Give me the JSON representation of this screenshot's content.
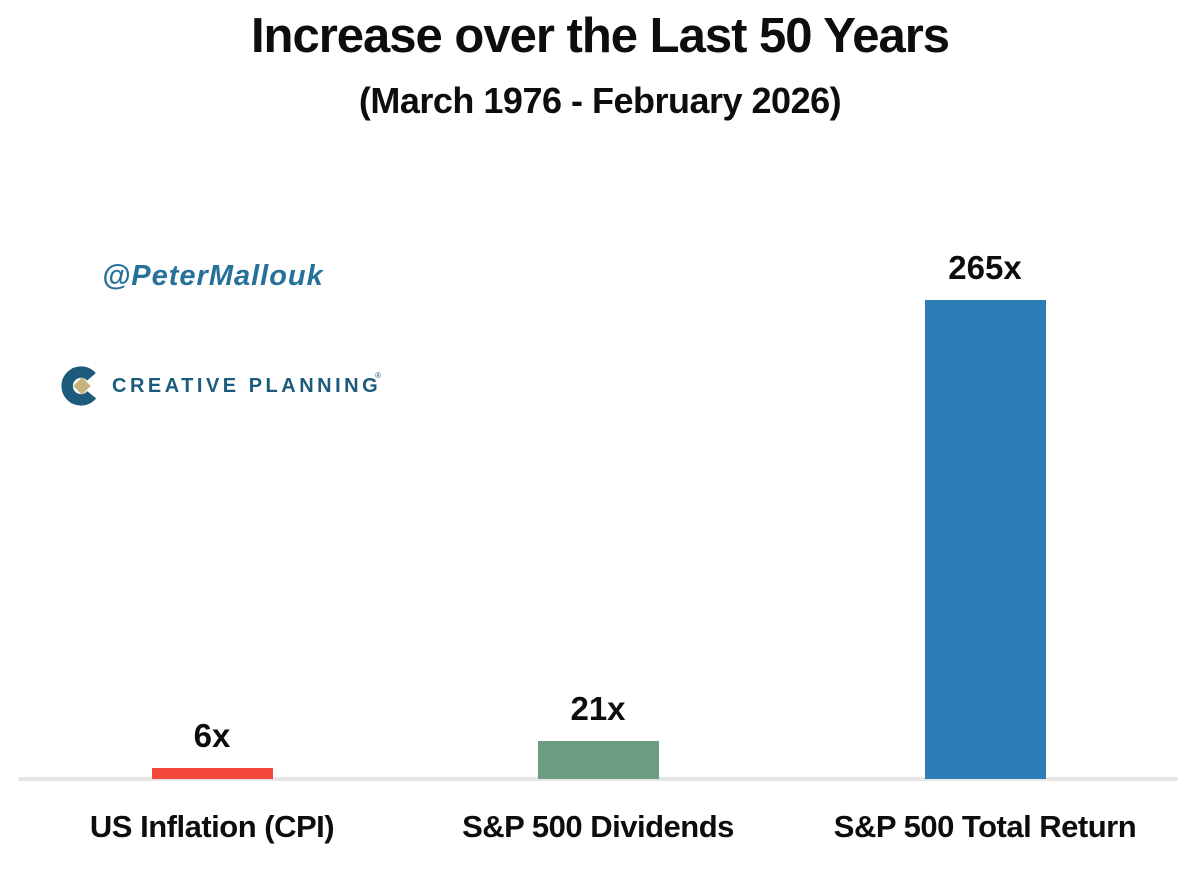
{
  "page": {
    "title": "Increase over the Last 50 Years",
    "subtitle": "(March 1976 - February 2026)"
  },
  "branding": {
    "twitter_handle": "@PeterMallouk",
    "twitter_handle_color": "#26709a",
    "logo_wordmark": "CREATIVE PLANNING",
    "logo_trademark": "®",
    "logo_text_color": "#1d5b7c",
    "logo_mark_color": "#1d5b7c",
    "logo_diamond_color": "#c6b17f"
  },
  "chart_data": {
    "type": "bar",
    "title": "Increase over the Last 50 Years",
    "subtitle": "(March 1976 - February 2026)",
    "categories": [
      "US Inflation (CPI)",
      "S&P 500 Dividends",
      "S&P 500 Total Return"
    ],
    "values": [
      6,
      21,
      265
    ],
    "value_labels": [
      "6x",
      "21x",
      "265x"
    ],
    "bar_colors": [
      "#f5483d",
      "#6b9e80",
      "#2e7cb5"
    ],
    "xlabel": "",
    "ylabel": "",
    "ylim": [
      0,
      265
    ],
    "grid": false,
    "legend": false,
    "axis_line_color": "#e6e6e6",
    "background_color": "#ffffff"
  }
}
